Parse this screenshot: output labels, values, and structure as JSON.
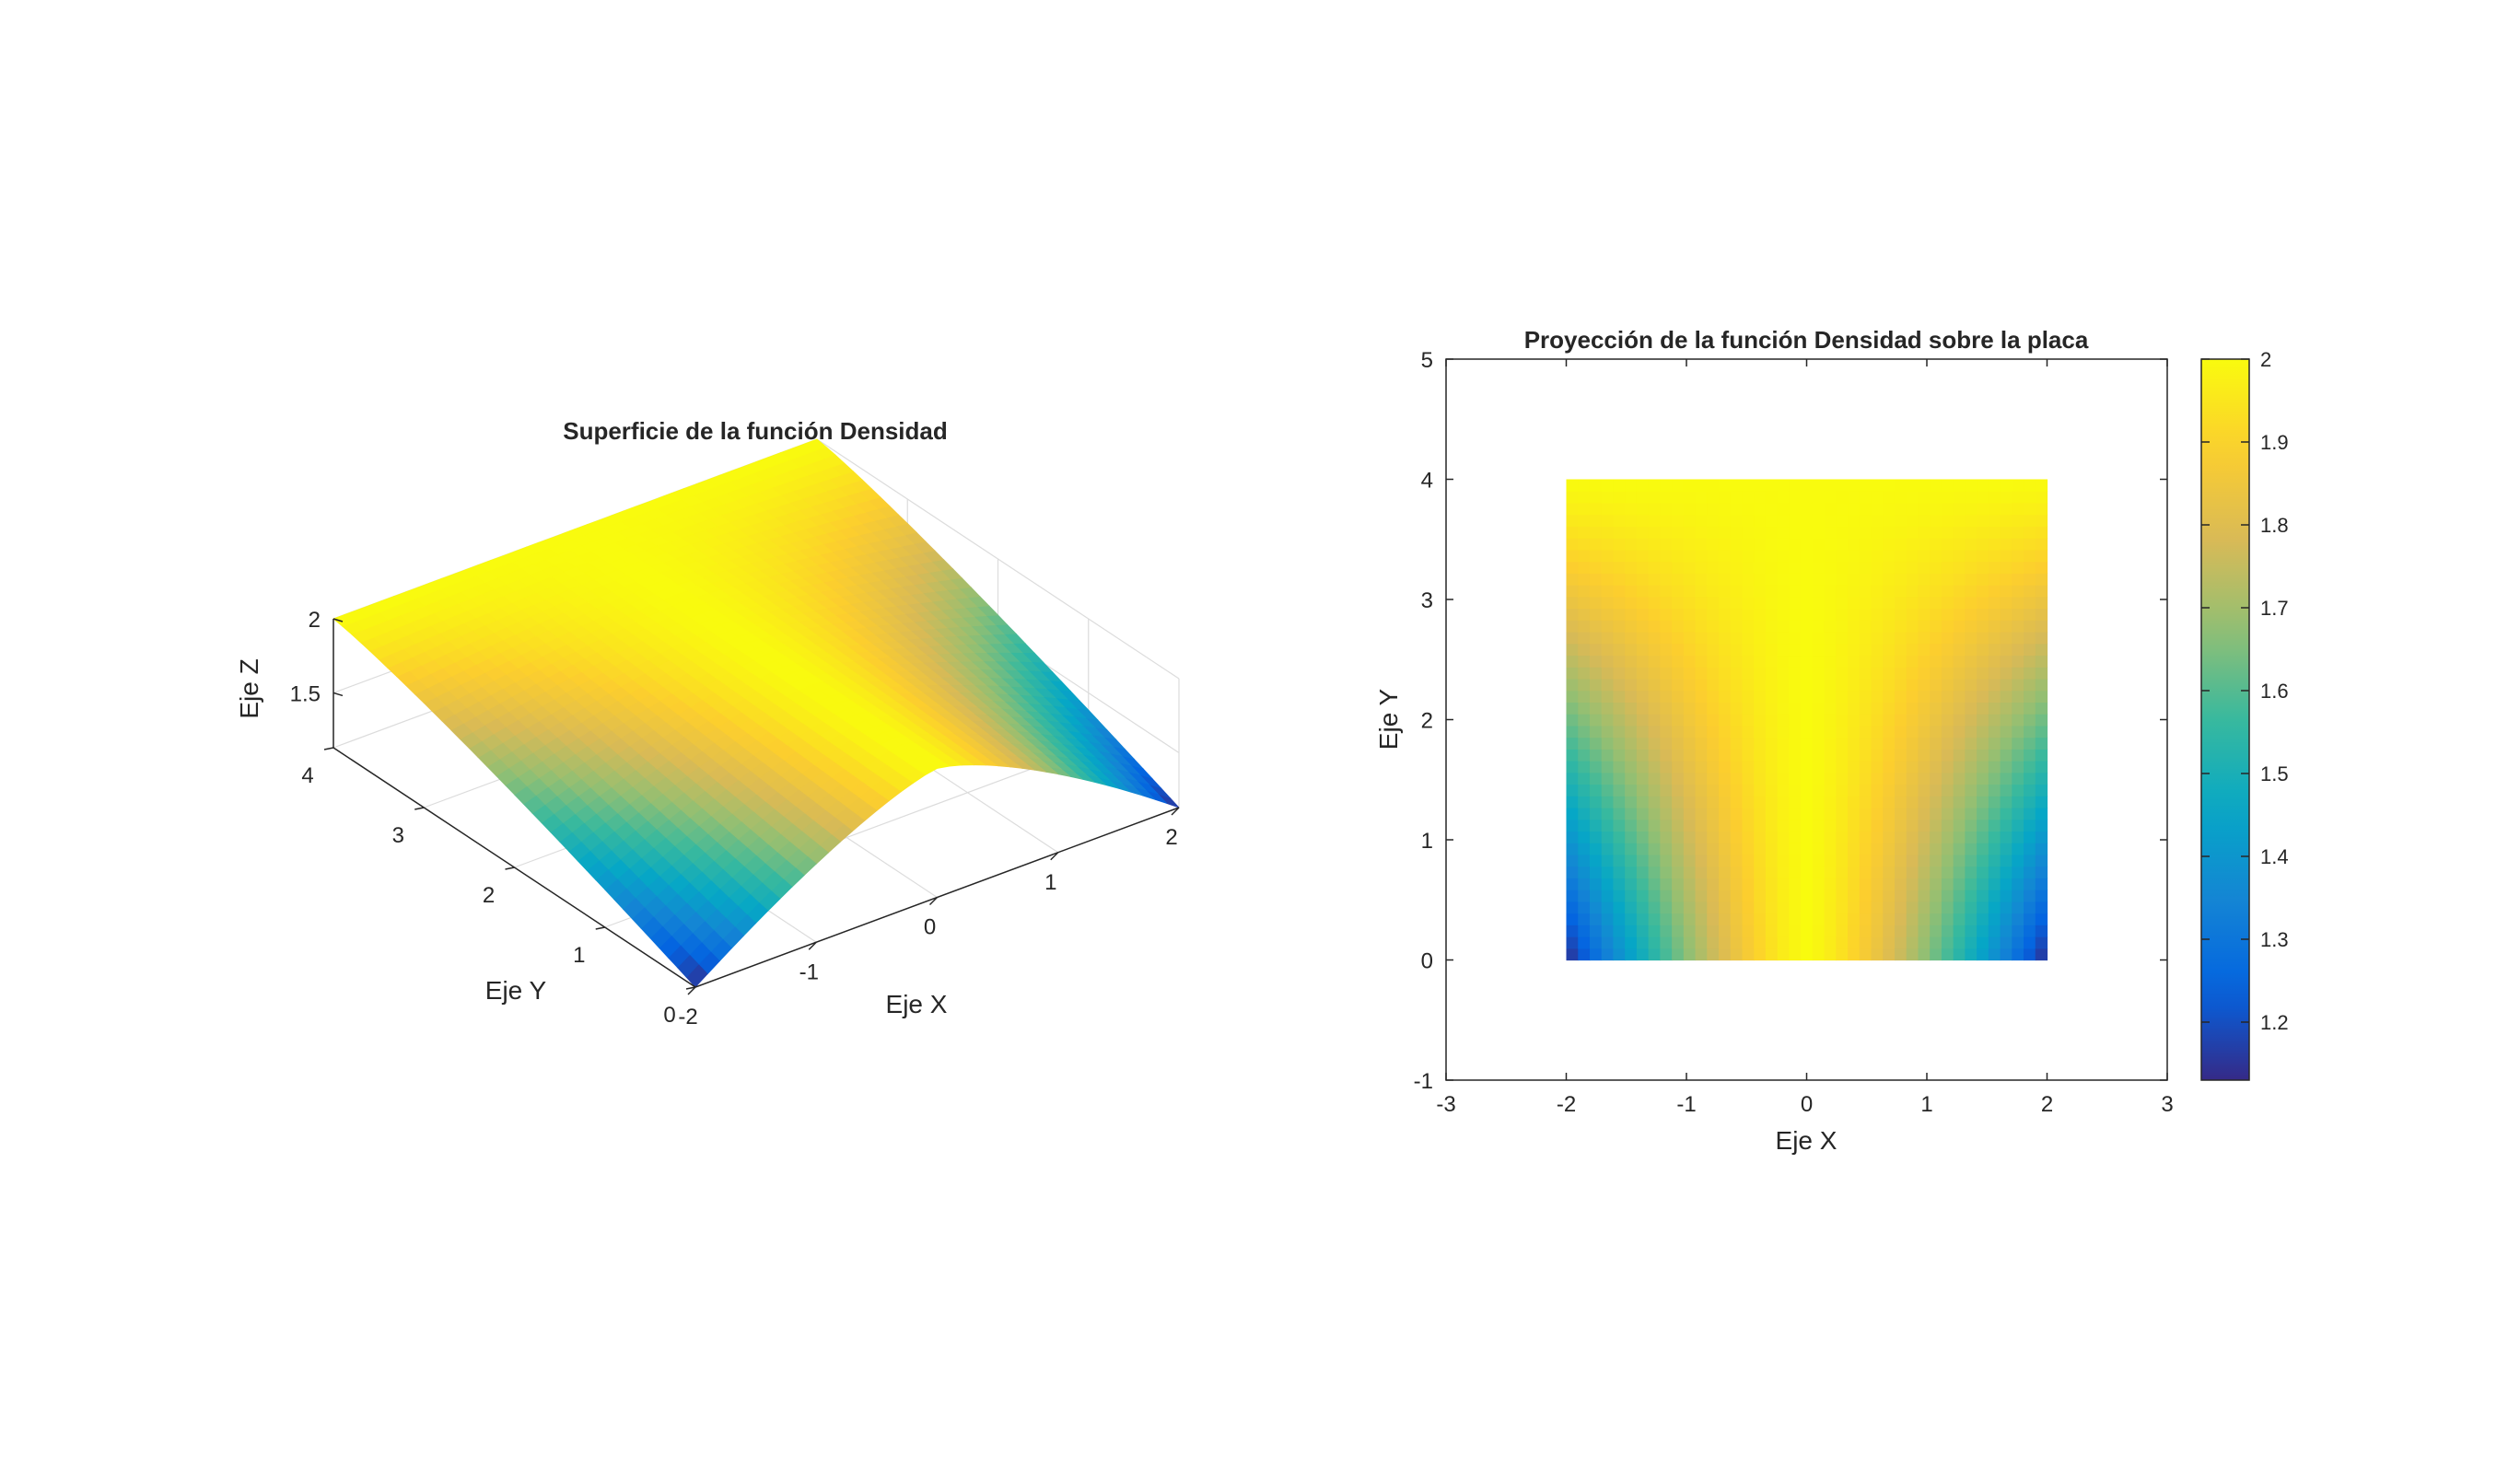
{
  "chart_data": [
    {
      "type": "surface",
      "title": "Superficie de la función Densidad",
      "xlabel": "Eje X",
      "ylabel": "Eje Y",
      "zlabel": "Eje Z",
      "x_ticks": [
        "-2",
        "-1",
        "0",
        "1",
        "2"
      ],
      "y_ticks": [
        "0",
        "1",
        "2",
        "3",
        "4"
      ],
      "z_ticks": [
        "1.5",
        "2"
      ],
      "xlim": [
        -2,
        2
      ],
      "ylim": [
        0,
        4
      ],
      "zlim": [
        1.13,
        2
      ],
      "grid": true,
      "colormap": "parula",
      "function_shape": "z = 2 - 0.87*(|x|/2)^1.35 * (1 - y/4)^1.2 (peak ridge along x=0)"
    },
    {
      "type": "heatmap",
      "title": "Proyección de la función Densidad sobre la placa",
      "xlabel": "Eje X",
      "ylabel": "Eje Y",
      "x_ticks": [
        "-3",
        "-2",
        "-1",
        "0",
        "1",
        "2",
        "3"
      ],
      "y_ticks": [
        "-1",
        "0",
        "1",
        "2",
        "3",
        "4",
        "5"
      ],
      "xlim": [
        -3,
        3
      ],
      "ylim": [
        -1,
        5
      ],
      "data_extent": {
        "x": [
          -2,
          2
        ],
        "y": [
          0,
          4
        ]
      },
      "colorbar": {
        "range": [
          1.13,
          2
        ],
        "ticks": [
          "1.2",
          "1.3",
          "1.4",
          "1.5",
          "1.6",
          "1.7",
          "1.8",
          "1.9",
          "2"
        ]
      },
      "colormap": "parula"
    }
  ]
}
